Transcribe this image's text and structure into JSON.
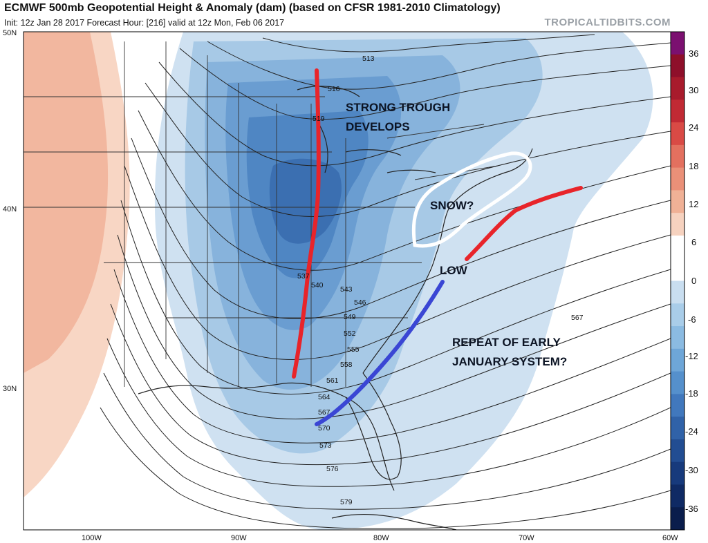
{
  "header": {
    "title": "ECMWF 500mb Geopotential Height & Anomaly (dam) (based on CFSR 1981-2010 Climatology)",
    "subtitle": "Init: 12z Jan 28 2017   Forecast Hour: [216]   valid at 12z Mon, Feb 06 2017",
    "watermark": "TROPICALTIDBITS.COM"
  },
  "map": {
    "lat_labels": [
      "50N",
      "40N",
      "30N"
    ],
    "lon_labels": [
      "100W",
      "90W",
      "80W",
      "70W",
      "60W"
    ],
    "contour_labels": [
      "513",
      "516",
      "519",
      "537",
      "540",
      "543",
      "546",
      "549",
      "552",
      "555",
      "558",
      "561",
      "564",
      "567",
      "570",
      "573",
      "576",
      "579",
      "567"
    ]
  },
  "annotations": {
    "trough": [
      "STRONG TROUGH",
      "DEVELOPS"
    ],
    "snow": "SNOW?",
    "low": "LOW",
    "repeat": [
      "REPEAT OF EARLY",
      "JANUARY SYSTEM?"
    ]
  },
  "colorbar": {
    "labels": [
      "36",
      "30",
      "24",
      "18",
      "12",
      "6",
      "0",
      "-6",
      "-12",
      "-18",
      "-24",
      "-30",
      "-36"
    ],
    "colors": [
      "#7b1070",
      "#8e0f2a",
      "#a81b2c",
      "#c12a34",
      "#d94a45",
      "#e3705f",
      "#ea9078",
      "#f0b196",
      "#f6d2bf",
      "#ffffff",
      "#ffffff",
      "#c9def0",
      "#a9cde9",
      "#8bbbe2",
      "#6ea6d8",
      "#5590cc",
      "#4178bd",
      "#3062a8",
      "#224d92",
      "#173a7c",
      "#0f2a64",
      "#0a1d4c"
    ]
  },
  "colors": {
    "trough_axis": "#e8242a",
    "front": "#3a46d4",
    "snow_outline": "#ffffff"
  }
}
